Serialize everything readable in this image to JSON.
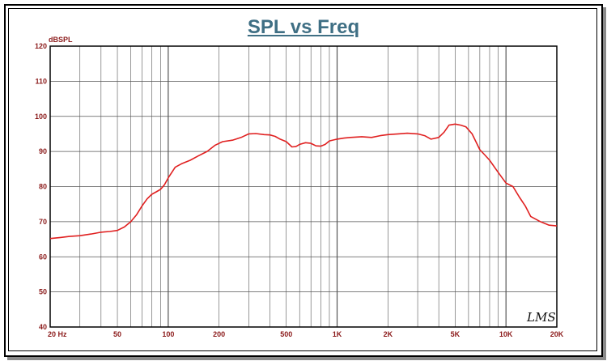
{
  "chart_data": {
    "type": "line",
    "title": "SPL vs Freq",
    "ylabel": "dBSPL",
    "xlabel": "",
    "x_scale": "log",
    "xlim": [
      20,
      20000
    ],
    "ylim": [
      40,
      120
    ],
    "grid": true,
    "x_tick_labels": [
      {
        "value": 20,
        "label": "20  Hz"
      },
      {
        "value": 50,
        "label": "50"
      },
      {
        "value": 100,
        "label": "100"
      },
      {
        "value": 200,
        "label": "200"
      },
      {
        "value": 500,
        "label": "500"
      },
      {
        "value": 1000,
        "label": "1K"
      },
      {
        "value": 2000,
        "label": "2K"
      },
      {
        "value": 5000,
        "label": "5K"
      },
      {
        "value": 10000,
        "label": "10K"
      },
      {
        "value": 20000,
        "label": "20K"
      }
    ],
    "y_ticks": [
      40,
      50,
      60,
      70,
      80,
      90,
      100,
      110,
      120
    ],
    "series": [
      {
        "color": "#e02020",
        "x": [
          20,
          23,
          26,
          30,
          35,
          40,
          45,
          50,
          55,
          60,
          65,
          70,
          75,
          80,
          85,
          90,
          95,
          100,
          110,
          120,
          135,
          150,
          170,
          190,
          210,
          240,
          270,
          300,
          330,
          370,
          400,
          430,
          460,
          500,
          540,
          570,
          600,
          650,
          700,
          750,
          800,
          850,
          900,
          1000,
          1100,
          1200,
          1400,
          1600,
          1800,
          2000,
          2300,
          2600,
          3000,
          3300,
          3600,
          4000,
          4300,
          4600,
          5000,
          5400,
          5800,
          6300,
          7000,
          7500,
          8000,
          9000,
          10000,
          11000,
          12000,
          13000,
          14000,
          16000,
          18000,
          20000
        ],
        "values": [
          65.2,
          65.5,
          65.8,
          66.0,
          66.5,
          67.0,
          67.2,
          67.5,
          68.5,
          70.0,
          72.0,
          74.5,
          76.5,
          77.8,
          78.5,
          79.2,
          80.5,
          82.5,
          85.5,
          86.5,
          87.5,
          88.7,
          90.0,
          91.8,
          92.8,
          93.2,
          94.0,
          95.0,
          95.1,
          94.8,
          94.7,
          94.3,
          93.5,
          92.8,
          91.3,
          91.4,
          92.0,
          92.5,
          92.3,
          91.6,
          91.5,
          92.0,
          93.0,
          93.5,
          93.8,
          94.0,
          94.2,
          94.0,
          94.5,
          94.8,
          95.0,
          95.2,
          95.0,
          94.5,
          93.5,
          94.0,
          95.5,
          97.5,
          97.8,
          97.5,
          97.0,
          95.0,
          90.5,
          89.0,
          87.5,
          84.0,
          81.0,
          80.0,
          77.0,
          74.5,
          71.5,
          70.0,
          69.0,
          68.8
        ]
      }
    ],
    "annotations": [
      "LMS"
    ]
  }
}
